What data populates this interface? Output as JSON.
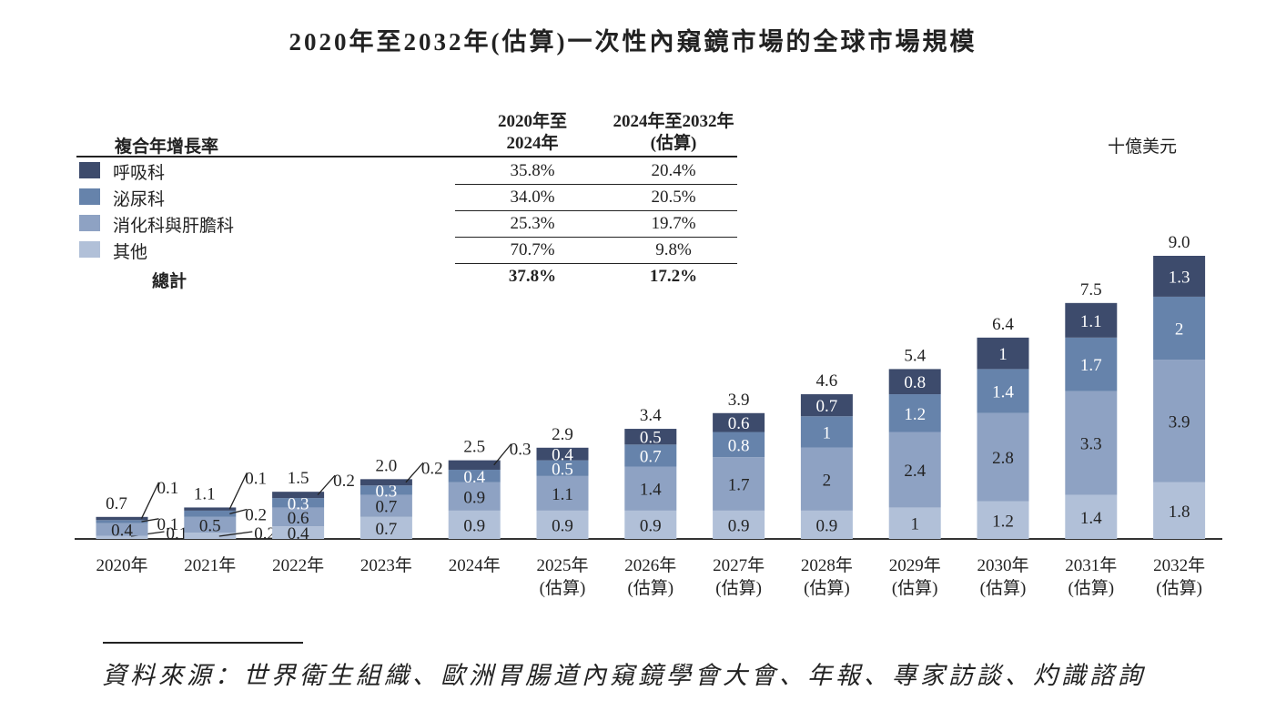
{
  "title": "2020年至2032年(估算)一次性內窺鏡市場的全球市場規模",
  "cagr_table": {
    "heading": "複合年增長率",
    "col1_header": [
      "2020年至",
      "2024年"
    ],
    "col2_header": [
      "2024年至2032年",
      "(估算)"
    ],
    "rows": [
      {
        "label": "呼吸科",
        "color": "#3d4b6c",
        "c1": "35.8%",
        "c2": "20.4%"
      },
      {
        "label": "泌尿科",
        "color": "#6683ab",
        "c1": "34.0%",
        "c2": "20.5%"
      },
      {
        "label": "消化科與肝膽科",
        "color": "#8ea2c3",
        "c1": "25.3%",
        "c2": "19.7%"
      },
      {
        "label": "其他",
        "color": "#b1c0d8",
        "c1": "70.7%",
        "c2": "9.8%"
      }
    ],
    "total": {
      "label": "總計",
      "c1": "37.8%",
      "c2": "17.2%"
    }
  },
  "unit": "十億美元",
  "source": "資料來源：世界衛生組織、歐洲胃腸道內窺鏡學會大會、年報、專家訪談、灼識諮詢",
  "chart_data": {
    "type": "bar",
    "stacked": true,
    "categories": [
      [
        "2020年",
        ""
      ],
      [
        "2021年",
        ""
      ],
      [
        "2022年",
        ""
      ],
      [
        "2023年",
        ""
      ],
      [
        "2024年",
        ""
      ],
      [
        "2025年",
        "(估算)"
      ],
      [
        "2026年",
        "(估算)"
      ],
      [
        "2027年",
        "(估算)"
      ],
      [
        "2028年",
        "(估算)"
      ],
      [
        "2029年",
        "(估算)"
      ],
      [
        "2030年",
        "(估算)"
      ],
      [
        "2031年",
        "(估算)"
      ],
      [
        "2032年",
        "(估算)"
      ]
    ],
    "series": [
      {
        "name": "其他",
        "color": "#b1c0d8",
        "values": [
          0.1,
          0.2,
          0.4,
          0.7,
          0.9,
          0.9,
          0.9,
          0.9,
          0.9,
          1.0,
          1.2,
          1.4,
          1.8
        ]
      },
      {
        "name": "消化科與肝膽科",
        "color": "#8ea2c3",
        "values": [
          0.4,
          0.5,
          0.6,
          0.7,
          0.9,
          1.1,
          1.4,
          1.7,
          2.0,
          2.4,
          2.8,
          3.3,
          3.9
        ]
      },
      {
        "name": "泌尿科",
        "color": "#6683ab",
        "values": [
          0.1,
          0.2,
          0.3,
          0.3,
          0.4,
          0.5,
          0.7,
          0.8,
          1.0,
          1.2,
          1.4,
          1.7,
          2.0
        ]
      },
      {
        "name": "呼吸科",
        "color": "#3d4b6c",
        "values": [
          0.1,
          0.1,
          0.2,
          0.2,
          0.3,
          0.4,
          0.5,
          0.6,
          0.7,
          0.8,
          1.0,
          1.1,
          1.3
        ]
      }
    ],
    "totals": [
      "0.7",
      "1.1",
      "1.5",
      "2.0",
      "2.5",
      "2.9",
      "3.4",
      "3.9",
      "4.6",
      "5.4",
      "6.4",
      "7.5",
      "9.0"
    ],
    "ylim": [
      0,
      9.0
    ],
    "grid": false
  }
}
